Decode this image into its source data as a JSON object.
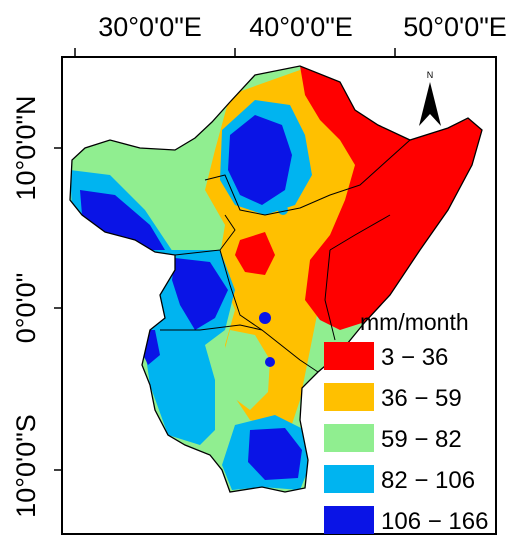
{
  "map": {
    "longitude_labels": [
      "30°0'0\"E",
      "40°0'0\"E",
      "50°0'0\"E"
    ],
    "latitude_labels": [
      "10°0'0\"N",
      "0°0'0\"",
      "10°0'0\"S"
    ],
    "north_arrow_label": "N"
  },
  "legend": {
    "title": "mm/month",
    "classes": [
      {
        "label": "3 − 36",
        "color": "#ff0000"
      },
      {
        "label": "36 − 59",
        "color": "#ffc000"
      },
      {
        "label": "59 − 82",
        "color": "#90ee90"
      },
      {
        "label": "82 − 106",
        "color": "#00b4f0"
      },
      {
        "label": "106 − 166",
        "color": "#0a14e6"
      }
    ]
  }
}
